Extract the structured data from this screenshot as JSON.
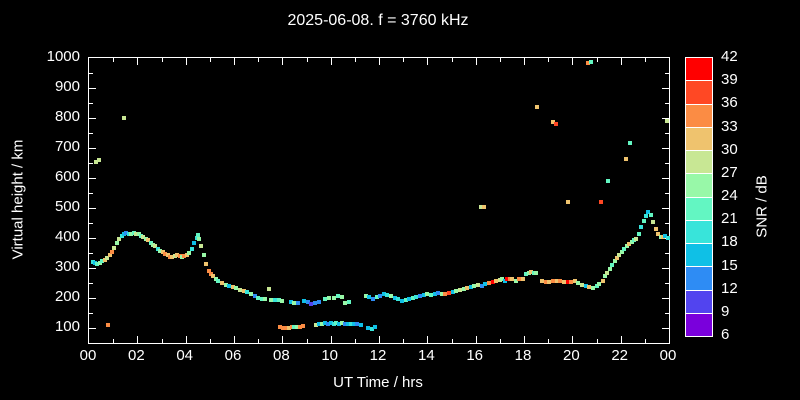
{
  "title": "2025-06-08. f = 3760 kHz",
  "chart_data": {
    "type": "scatter",
    "title": "2025-06-08. f = 3760 kHz",
    "xlabel": "UT Time / hrs",
    "ylabel": "Virtual height / km",
    "xlim": [
      0,
      24
    ],
    "ylim": [
      50,
      1000
    ],
    "x_major_tick_hours": [
      0,
      2,
      4,
      6,
      8,
      10,
      12,
      14,
      16,
      18,
      20,
      22,
      24
    ],
    "x_tick_labels": [
      "00",
      "02",
      "04",
      "06",
      "08",
      "10",
      "12",
      "14",
      "16",
      "18",
      "20",
      "22",
      "00"
    ],
    "x_minor_step_hours": 1,
    "y_major_ticks": [
      100,
      200,
      300,
      400,
      500,
      600,
      700,
      800,
      900,
      1000
    ],
    "y_minor_step": 50,
    "grid": false,
    "background_color": "#000000",
    "axis_color": "#ffffff",
    "colorbar": {
      "label": "SNR / dB",
      "min": 6,
      "max": 42,
      "tick_labels": [
        "42",
        "39",
        "36",
        "33",
        "30",
        "27",
        "24",
        "21",
        "18",
        "15",
        "12",
        "9",
        "6"
      ],
      "colors_top_to_bottom": [
        "#FF0000",
        "#FF4824",
        "#FB8C44",
        "#EFC36E",
        "#C8E794",
        "#98F8A8",
        "#63F6C2",
        "#38E4DA",
        "#0FC0E6",
        "#2E8CF4",
        "#5244EF",
        "#7A00DC"
      ]
    },
    "palette": [
      "#FF0000",
      "#FF4824",
      "#FB8C44",
      "#EFC36E",
      "#C8E794",
      "#98F8A8",
      "#63F6C2",
      "#38E4DA",
      "#0FC0E6",
      "#2E8CF4",
      "#5244EF",
      "#7A00DC"
    ],
    "points_format": [
      "ut_hours",
      "virtual_height_km",
      "palette_color_index"
    ],
    "points": [
      [
        0.15,
        320,
        7
      ],
      [
        0.25,
        316,
        8
      ],
      [
        0.35,
        313,
        6
      ],
      [
        0.45,
        317,
        5
      ],
      [
        0.55,
        322,
        6
      ],
      [
        0.65,
        328,
        3
      ],
      [
        0.75,
        333,
        4
      ],
      [
        0.85,
        342,
        3
      ],
      [
        0.95,
        355,
        2
      ],
      [
        1.05,
        368,
        4
      ],
      [
        1.15,
        383,
        5
      ],
      [
        1.25,
        398,
        4
      ],
      [
        1.35,
        408,
        7
      ],
      [
        1.45,
        413,
        8
      ],
      [
        1.55,
        417,
        9
      ],
      [
        1.65,
        413,
        7
      ],
      [
        1.75,
        412,
        5
      ],
      [
        1.85,
        417,
        6
      ],
      [
        1.95,
        413,
        4
      ],
      [
        2.05,
        412,
        5
      ],
      [
        2.15,
        408,
        6
      ],
      [
        2.25,
        403,
        4
      ],
      [
        2.35,
        398,
        5
      ],
      [
        2.45,
        392,
        3
      ],
      [
        2.55,
        385,
        6
      ],
      [
        2.65,
        378,
        5
      ],
      [
        2.75,
        372,
        4
      ],
      [
        2.85,
        365,
        7
      ],
      [
        2.95,
        358,
        5
      ],
      [
        3.05,
        352,
        3
      ],
      [
        3.15,
        347,
        2
      ],
      [
        3.25,
        342,
        3
      ],
      [
        3.35,
        338,
        2
      ],
      [
        3.45,
        337,
        3
      ],
      [
        3.55,
        340,
        4
      ],
      [
        3.65,
        343,
        3
      ],
      [
        3.75,
        340,
        2
      ],
      [
        3.85,
        337,
        5
      ],
      [
        3.95,
        340,
        2
      ],
      [
        4.05,
        343,
        3
      ],
      [
        4.15,
        350,
        5
      ],
      [
        4.25,
        363,
        7
      ],
      [
        4.35,
        382,
        8
      ],
      [
        4.45,
        400,
        7
      ],
      [
        4.5,
        410,
        6
      ],
      [
        4.55,
        397,
        5
      ],
      [
        4.65,
        375,
        4
      ],
      [
        4.75,
        345,
        5
      ],
      [
        4.85,
        312,
        3
      ],
      [
        4.95,
        290,
        2
      ],
      [
        5.05,
        280,
        2
      ],
      [
        5.15,
        272,
        3
      ],
      [
        5.25,
        263,
        5
      ],
      [
        5.35,
        256,
        6
      ],
      [
        5.5,
        250,
        3
      ],
      [
        5.65,
        245,
        5
      ],
      [
        5.8,
        240,
        8
      ],
      [
        5.95,
        236,
        3
      ],
      [
        6.1,
        232,
        5
      ],
      [
        6.25,
        228,
        4
      ],
      [
        6.4,
        224,
        3
      ],
      [
        6.55,
        220,
        7
      ],
      [
        6.7,
        214,
        5
      ],
      [
        6.85,
        207,
        9
      ],
      [
        7.0,
        201,
        6
      ],
      [
        7.15,
        197,
        6
      ],
      [
        7.3,
        196,
        5
      ],
      [
        7.45,
        230,
        4
      ],
      [
        7.55,
        194,
        5
      ],
      [
        7.7,
        192,
        7
      ],
      [
        7.85,
        192,
        6
      ],
      [
        7.98,
        191,
        5
      ],
      [
        8.35,
        186,
        8
      ],
      [
        8.5,
        183,
        5
      ],
      [
        8.65,
        184,
        9
      ],
      [
        8.9,
        190,
        8
      ],
      [
        9.05,
        187,
        9
      ],
      [
        9.2,
        181,
        10
      ],
      [
        9.35,
        185,
        9
      ],
      [
        9.5,
        188,
        9
      ],
      [
        9.75,
        196,
        6
      ],
      [
        9.95,
        199,
        5
      ],
      [
        10.15,
        200,
        5
      ],
      [
        10.3,
        206,
        6
      ],
      [
        10.45,
        204,
        5
      ],
      [
        10.6,
        184,
        5
      ],
      [
        10.75,
        188,
        6
      ],
      [
        11.45,
        206,
        5
      ],
      [
        11.6,
        202,
        8
      ],
      [
        11.75,
        198,
        9
      ],
      [
        11.9,
        203,
        6
      ],
      [
        12.05,
        208,
        9
      ],
      [
        12.2,
        212,
        8
      ],
      [
        12.35,
        210,
        7
      ],
      [
        12.5,
        206,
        5
      ],
      [
        12.65,
        201,
        8
      ],
      [
        12.8,
        196,
        7
      ],
      [
        12.95,
        190,
        8
      ],
      [
        13.1,
        192,
        6
      ],
      [
        13.25,
        196,
        8
      ],
      [
        13.4,
        200,
        6
      ],
      [
        13.55,
        203,
        7
      ],
      [
        13.7,
        208,
        9
      ],
      [
        13.85,
        211,
        8
      ],
      [
        14.0,
        213,
        5
      ],
      [
        14.15,
        210,
        6
      ],
      [
        14.3,
        213,
        8
      ],
      [
        14.45,
        217,
        9
      ],
      [
        14.6,
        214,
        5
      ],
      [
        14.75,
        213,
        2
      ],
      [
        14.9,
        217,
        1
      ],
      [
        15.05,
        220,
        8
      ],
      [
        15.2,
        223,
        5
      ],
      [
        15.35,
        226,
        4
      ],
      [
        15.5,
        230,
        5
      ],
      [
        15.65,
        233,
        3
      ],
      [
        15.8,
        236,
        8
      ],
      [
        15.95,
        240,
        5
      ],
      [
        16.1,
        243,
        4
      ],
      [
        16.25,
        240,
        9
      ],
      [
        16.4,
        246,
        8
      ],
      [
        16.55,
        250,
        2
      ],
      [
        16.7,
        253,
        0
      ],
      [
        16.85,
        257,
        3
      ],
      [
        17.0,
        260,
        4
      ],
      [
        17.1,
        262,
        5
      ],
      [
        17.2,
        258,
        8
      ],
      [
        17.3,
        262,
        0
      ],
      [
        17.4,
        265,
        2
      ],
      [
        17.5,
        262,
        3
      ],
      [
        17.65,
        258,
        5
      ],
      [
        17.8,
        262,
        2
      ],
      [
        17.95,
        265,
        3
      ],
      [
        18.1,
        280,
        6
      ],
      [
        18.2,
        285,
        5
      ],
      [
        18.3,
        288,
        3
      ],
      [
        18.4,
        285,
        6
      ],
      [
        18.5,
        283,
        5
      ],
      [
        18.75,
        257,
        3
      ],
      [
        18.9,
        253,
        2
      ],
      [
        19.05,
        255,
        3
      ],
      [
        19.2,
        257,
        2
      ],
      [
        19.35,
        258,
        3
      ],
      [
        19.5,
        257,
        2
      ],
      [
        19.65,
        255,
        3
      ],
      [
        19.8,
        253,
        0
      ],
      [
        19.95,
        255,
        2
      ],
      [
        20.1,
        257,
        3
      ],
      [
        20.25,
        250,
        5
      ],
      [
        20.4,
        245,
        4
      ],
      [
        20.55,
        240,
        8
      ],
      [
        20.7,
        237,
        3
      ],
      [
        20.85,
        235,
        5
      ],
      [
        21.0,
        240,
        6
      ],
      [
        21.1,
        247,
        5
      ],
      [
        21.25,
        257,
        3
      ],
      [
        21.35,
        272,
        5
      ],
      [
        21.45,
        285,
        4
      ],
      [
        21.55,
        298,
        5
      ],
      [
        21.65,
        310,
        6
      ],
      [
        21.75,
        322,
        5
      ],
      [
        21.85,
        335,
        3
      ],
      [
        21.95,
        345,
        4
      ],
      [
        22.05,
        355,
        5
      ],
      [
        22.15,
        365,
        6
      ],
      [
        22.25,
        372,
        5
      ],
      [
        22.35,
        380,
        3
      ],
      [
        22.45,
        388,
        5
      ],
      [
        22.55,
        392,
        6
      ],
      [
        22.65,
        398,
        4
      ],
      [
        22.75,
        415,
        6
      ],
      [
        22.85,
        438,
        7
      ],
      [
        22.95,
        458,
        6
      ],
      [
        23.05,
        475,
        7
      ],
      [
        23.15,
        487,
        8
      ],
      [
        23.25,
        478,
        6
      ],
      [
        23.35,
        455,
        4
      ],
      [
        23.45,
        430,
        3
      ],
      [
        23.55,
        412,
        3
      ],
      [
        23.65,
        405,
        5
      ],
      [
        23.75,
        403,
        3
      ],
      [
        23.85,
        407,
        8
      ],
      [
        23.95,
        400,
        7
      ],
      [
        0.79,
        110,
        2
      ],
      [
        7.9,
        103,
        2
      ],
      [
        8.02,
        101,
        2
      ],
      [
        8.14,
        100,
        2
      ],
      [
        8.26,
        101,
        3
      ],
      [
        8.38,
        102,
        2
      ],
      [
        8.5,
        104,
        6
      ],
      [
        8.62,
        105,
        5
      ],
      [
        8.74,
        103,
        2
      ],
      [
        8.86,
        106,
        2
      ],
      [
        9.4,
        110,
        4
      ],
      [
        9.52,
        113,
        8
      ],
      [
        9.64,
        115,
        5
      ],
      [
        9.76,
        117,
        8
      ],
      [
        9.88,
        114,
        9
      ],
      [
        10.0,
        116,
        8
      ],
      [
        10.12,
        114,
        7
      ],
      [
        10.24,
        117,
        6
      ],
      [
        10.36,
        115,
        8
      ],
      [
        10.48,
        117,
        5
      ],
      [
        10.6,
        113,
        9
      ],
      [
        10.72,
        115,
        8
      ],
      [
        10.84,
        113,
        7
      ],
      [
        10.96,
        115,
        8
      ],
      [
        11.1,
        114,
        9
      ],
      [
        11.25,
        111,
        8
      ],
      [
        11.55,
        100,
        8
      ],
      [
        11.7,
        97,
        7
      ],
      [
        11.85,
        102,
        8
      ],
      [
        0.28,
        655,
        4
      ],
      [
        0.4,
        661,
        4
      ],
      [
        1.45,
        800,
        4
      ],
      [
        16.2,
        505,
        4
      ],
      [
        16.33,
        503,
        3
      ],
      [
        18.55,
        837,
        3
      ],
      [
        19.2,
        788,
        3
      ],
      [
        19.33,
        780,
        1
      ],
      [
        19.82,
        520,
        3
      ],
      [
        20.63,
        983,
        2
      ],
      [
        20.78,
        986,
        6
      ],
      [
        21.2,
        520,
        1
      ],
      [
        21.48,
        590,
        6
      ],
      [
        22.2,
        663,
        3
      ],
      [
        22.4,
        717,
        6
      ],
      [
        23.9,
        790,
        4
      ]
    ]
  }
}
